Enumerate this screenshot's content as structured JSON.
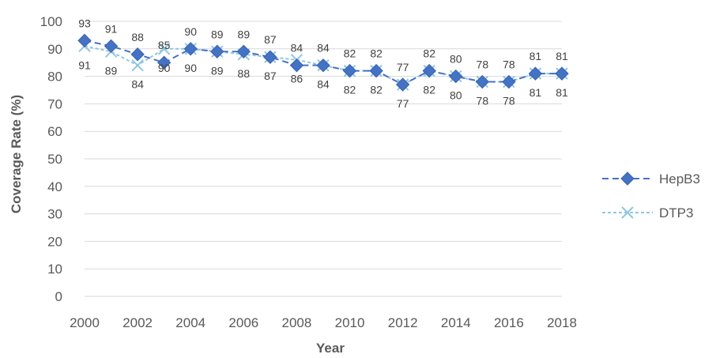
{
  "chart_data": {
    "type": "line",
    "x": [
      2000,
      2001,
      2002,
      2003,
      2004,
      2005,
      2006,
      2007,
      2008,
      2009,
      2010,
      2011,
      2012,
      2013,
      2014,
      2015,
      2016,
      2017,
      2018
    ],
    "x_ticks": [
      "2000",
      "2002",
      "2004",
      "2006",
      "2008",
      "2010",
      "2012",
      "2014",
      "2016",
      "2018"
    ],
    "y_ticks": [
      "0",
      "10",
      "20",
      "30",
      "40",
      "50",
      "60",
      "70",
      "80",
      "90",
      "100"
    ],
    "ylim": [
      0,
      100
    ],
    "xlabel": "Year",
    "ylabel": "Coverage Rate (%)",
    "grid": true,
    "legend_position": "right",
    "series": [
      {
        "name": "HepB3",
        "color": "#4472C4",
        "marker": "diamond",
        "label_position": "above",
        "values": [
          93,
          91,
          88,
          85,
          90,
          89,
          89,
          87,
          84,
          84,
          82,
          82,
          77,
          82,
          80,
          78,
          78,
          81,
          81
        ],
        "labels": [
          "93",
          "91",
          "88",
          "85",
          "90",
          "89",
          "89",
          "87",
          "84",
          "84",
          "82",
          "82",
          "77",
          "82",
          "80",
          "78",
          "78",
          "81",
          "81"
        ]
      },
      {
        "name": "DTP3",
        "color": "#8FC7E0",
        "marker": "x",
        "label_position": "below",
        "values": [
          91,
          89,
          84,
          90,
          90,
          89,
          88,
          87,
          86,
          84,
          82,
          82,
          77,
          82,
          80,
          78,
          78,
          81,
          81
        ],
        "labels": [
          "91",
          "89",
          "84",
          "90",
          "90",
          "89",
          "88",
          "87",
          "86",
          "84",
          "82",
          "82",
          "77",
          "82",
          "80",
          "78",
          "78",
          "81",
          "81"
        ]
      }
    ]
  }
}
